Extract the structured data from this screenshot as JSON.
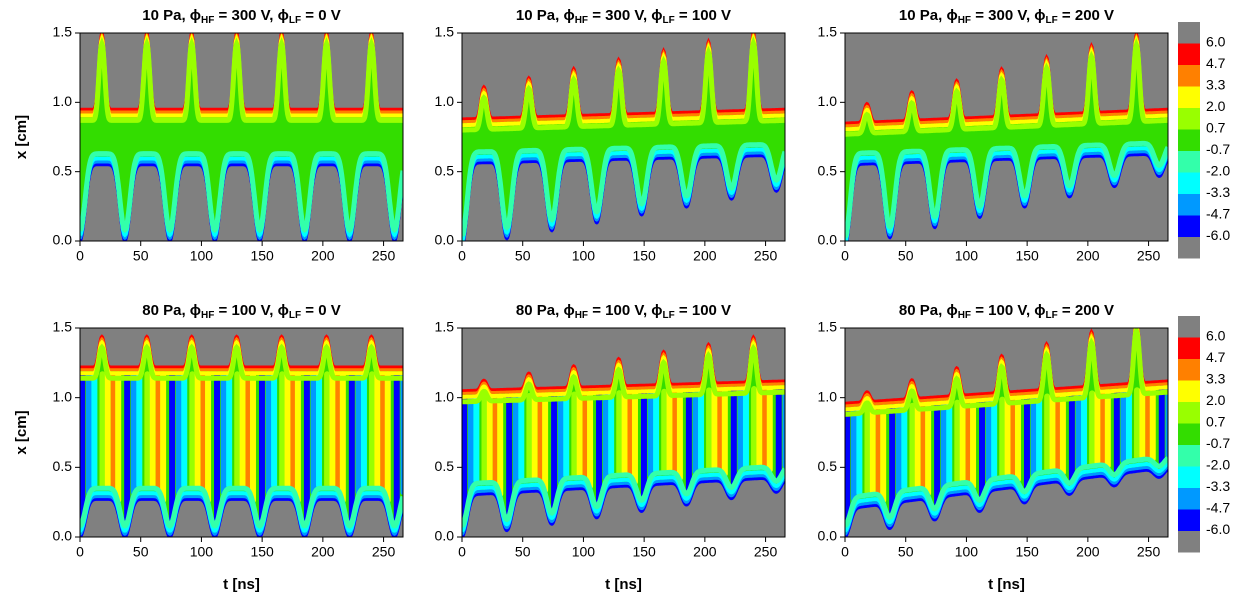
{
  "chart_data": [
    {
      "type": "contour",
      "title": [
        "10 Pa, ϕ",
        "HF",
        " = 300 V, ϕ",
        "LF",
        " = 0 V"
      ],
      "ylabel": "x [cm]",
      "xlim": [
        0,
        266
      ],
      "xticks": [
        0,
        50,
        100,
        150,
        200,
        250
      ],
      "ylim": [
        0,
        1.5
      ],
      "yticks": [
        {
          "value": 0,
          "label": "0.0"
        },
        {
          "value": 0.5,
          "label": "0.5"
        },
        {
          "value": 1,
          "label": "1.0"
        },
        {
          "value": 1.5,
          "label": "1.5"
        }
      ]
    },
    {
      "type": "contour",
      "title": [
        "10 Pa, ϕ",
        "HF",
        " = 300 V, ϕ",
        "LF",
        " = 100 V"
      ],
      "xlim": [
        0,
        266
      ],
      "xticks": [
        0,
        50,
        100,
        150,
        200,
        250
      ],
      "ylim": [
        0,
        1.5
      ],
      "yticks": [
        {
          "value": 0,
          "label": "0.0"
        },
        {
          "value": 0.5,
          "label": "0.5"
        },
        {
          "value": 1,
          "label": "1.0"
        },
        {
          "value": 1.5,
          "label": "1.5"
        }
      ]
    },
    {
      "type": "contour",
      "title": [
        "10 Pa, ϕ",
        "HF",
        " = 300 V, ϕ",
        "LF",
        " = 200 V"
      ],
      "xlim": [
        0,
        266
      ],
      "xticks": [
        0,
        50,
        100,
        150,
        200,
        250
      ],
      "ylim": [
        0,
        1.5
      ],
      "yticks": [
        {
          "value": 0,
          "label": "0.0"
        },
        {
          "value": 0.5,
          "label": "0.5"
        },
        {
          "value": 1,
          "label": "1.0"
        },
        {
          "value": 1.5,
          "label": "1.5"
        }
      ]
    },
    {
      "type": "contour",
      "title": [
        "80 Pa, ϕ",
        "HF",
        " = 100 V, ϕ",
        "LF",
        " = 0 V"
      ],
      "ylabel": "x [cm]",
      "xlabel": "t [ns]",
      "xlim": [
        0,
        266
      ],
      "xticks": [
        0,
        50,
        100,
        150,
        200,
        250
      ],
      "ylim": [
        0,
        1.5
      ],
      "yticks": [
        {
          "value": 0,
          "label": "0.0"
        },
        {
          "value": 0.5,
          "label": "0.5"
        },
        {
          "value": 1,
          "label": "1.0"
        },
        {
          "value": 1.5,
          "label": "1.5"
        }
      ]
    },
    {
      "type": "contour",
      "title": [
        "80 Pa, ϕ",
        "HF",
        " = 100 V, ϕ",
        "LF",
        " = 100 V"
      ],
      "xlabel": "t [ns]",
      "xlim": [
        0,
        266
      ],
      "xticks": [
        0,
        50,
        100,
        150,
        200,
        250
      ],
      "ylim": [
        0,
        1.5
      ],
      "yticks": [
        {
          "value": 0,
          "label": "0.0"
        },
        {
          "value": 0.5,
          "label": "0.5"
        },
        {
          "value": 1,
          "label": "1.0"
        },
        {
          "value": 1.5,
          "label": "1.5"
        }
      ]
    },
    {
      "type": "contour",
      "title": [
        "80 Pa, ϕ",
        "HF",
        " = 100 V, ϕ",
        "LF",
        " = 200 V"
      ],
      "xlabel": "t [ns]",
      "xlim": [
        0,
        266
      ],
      "xticks": [
        0,
        50,
        100,
        150,
        200,
        250
      ],
      "ylim": [
        0,
        1.5
      ],
      "yticks": [
        {
          "value": 0,
          "label": "0.0"
        },
        {
          "value": 0.5,
          "label": "0.5"
        },
        {
          "value": 1,
          "label": "1.0"
        },
        {
          "value": 1.5,
          "label": "1.5"
        }
      ]
    }
  ],
  "colorbar": {
    "levels": [
      {
        "value": 6,
        "label": "6.0"
      },
      {
        "value": 4.7,
        "label": "4.7"
      },
      {
        "value": 3.3,
        "label": "3.3"
      },
      {
        "value": 2,
        "label": "2.0"
      },
      {
        "value": 0.7,
        "label": "0.7"
      },
      {
        "value": -0.7,
        "label": "-0.7"
      },
      {
        "value": -2,
        "label": "-2.0"
      },
      {
        "value": -3.3,
        "label": "-3.3"
      },
      {
        "value": -4.7,
        "label": "-4.7"
      },
      {
        "value": -6,
        "label": "-6.0"
      }
    ],
    "colors": [
      "#808080",
      "#ff0000",
      "#ff8000",
      "#ffff00",
      "#99ff00",
      "#33dd00",
      "#33ffaa",
      "#00ffff",
      "#0099ff",
      "#0000ff",
      "#808080"
    ]
  }
}
